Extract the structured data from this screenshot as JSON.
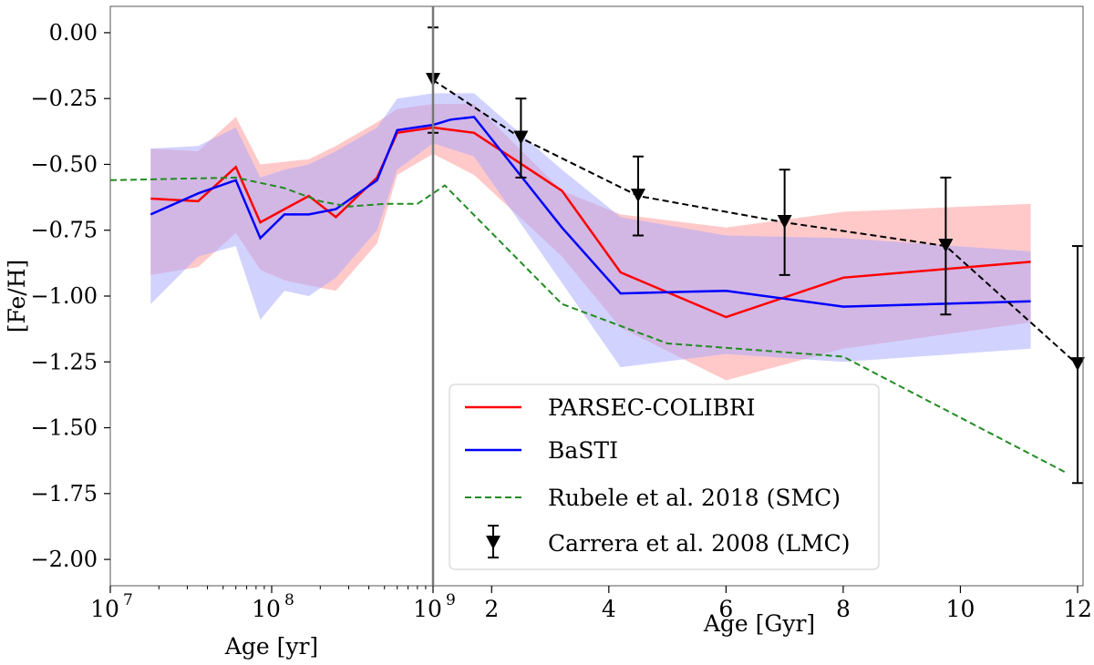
{
  "chart_data": {
    "type": "line",
    "ylabel": "[Fe/H]",
    "ylim": [
      -2.1,
      0.1
    ],
    "y_ticks": [
      {
        "value": 0.0,
        "label": "0.00"
      },
      {
        "value": -0.25,
        "label": "−0.25"
      },
      {
        "value": -0.5,
        "label": "−0.50"
      },
      {
        "value": -0.75,
        "label": "−0.75"
      },
      {
        "value": -1.0,
        "label": "−1.00"
      },
      {
        "value": -1.25,
        "label": "−1.25"
      },
      {
        "value": -1.5,
        "label": "−1.50"
      },
      {
        "value": -1.75,
        "label": "−1.75"
      },
      {
        "value": -2.0,
        "label": "−2.00"
      }
    ],
    "left_panel": {
      "xlabel": "Age [yr]",
      "xscale": "log",
      "xlim_log10": [
        7,
        9
      ],
      "x_ticks": [
        {
          "log10": 7,
          "base": "10",
          "exp": "7"
        },
        {
          "log10": 8,
          "base": "10",
          "exp": "8"
        },
        {
          "log10": 9,
          "base": "10",
          "exp": "9"
        }
      ]
    },
    "right_panel": {
      "xlabel": "Age [Gyr]",
      "xscale": "linear",
      "xlim": [
        1,
        12
      ],
      "x_ticks": [
        {
          "value": 2,
          "label": "2"
        },
        {
          "value": 4,
          "label": "4"
        },
        {
          "value": 6,
          "label": "6"
        },
        {
          "value": 8,
          "label": "8"
        },
        {
          "value": 10,
          "label": "10"
        },
        {
          "value": 12,
          "label": "12"
        }
      ]
    },
    "bands": [
      {
        "name": "PARSEC-COLIBRI range",
        "color": "#ff9c9c",
        "x_gyr": [
          0.0178,
          0.035,
          0.06,
          0.085,
          0.12,
          0.17,
          0.25,
          0.45,
          0.6,
          1.0,
          1.7,
          3.2,
          4.2,
          6.0,
          8.0,
          11.2
        ],
        "upper": [
          -0.44,
          -0.45,
          -0.32,
          -0.5,
          -0.49,
          -0.48,
          -0.43,
          -0.34,
          -0.29,
          -0.27,
          -0.27,
          -0.6,
          -0.69,
          -0.74,
          -0.68,
          -0.65
        ],
        "lower": [
          -0.92,
          -0.89,
          -0.76,
          -0.9,
          -0.94,
          -0.96,
          -0.98,
          -0.8,
          -0.54,
          -0.46,
          -0.54,
          -0.85,
          -1.12,
          -1.32,
          -1.2,
          -1.1
        ]
      },
      {
        "name": "BaSTI range",
        "color": "#a5a5ff",
        "x_gyr": [
          0.0178,
          0.035,
          0.06,
          0.085,
          0.12,
          0.17,
          0.25,
          0.45,
          0.6,
          1.0,
          1.7,
          3.2,
          4.2,
          6.0,
          8.0,
          11.2
        ],
        "upper": [
          -0.44,
          -0.43,
          -0.36,
          -0.55,
          -0.52,
          -0.5,
          -0.45,
          -0.36,
          -0.25,
          -0.23,
          -0.23,
          -0.52,
          -0.7,
          -0.77,
          -0.78,
          -0.83
        ],
        "lower": [
          -1.03,
          -0.85,
          -0.81,
          -1.09,
          -0.98,
          -1.0,
          -0.93,
          -0.75,
          -0.52,
          -0.42,
          -0.47,
          -0.95,
          -1.27,
          -1.22,
          -1.25,
          -1.2
        ]
      }
    ],
    "series": [
      {
        "name": "PARSEC-COLIBRI",
        "color": "#ff0000",
        "style": "solid",
        "x_gyr": [
          0.0178,
          0.035,
          0.06,
          0.085,
          0.12,
          0.17,
          0.25,
          0.45,
          0.6,
          1.0,
          1.7,
          3.2,
          4.2,
          6.0,
          8.0,
          11.2
        ],
        "y": [
          -0.63,
          -0.64,
          -0.51,
          -0.72,
          -0.67,
          -0.62,
          -0.7,
          -0.55,
          -0.38,
          -0.36,
          -0.38,
          -0.6,
          -0.91,
          -1.08,
          -0.93,
          -0.87
        ]
      },
      {
        "name": "BaSTI",
        "color": "#0000ff",
        "style": "solid",
        "x_gyr": [
          0.0178,
          0.035,
          0.06,
          0.085,
          0.12,
          0.17,
          0.25,
          0.45,
          0.6,
          1.0,
          1.3,
          1.7,
          3.2,
          4.2,
          6.0,
          8.0,
          11.2
        ],
        "y": [
          -0.69,
          -0.61,
          -0.56,
          -0.78,
          -0.69,
          -0.69,
          -0.67,
          -0.56,
          -0.37,
          -0.35,
          -0.33,
          -0.32,
          -0.74,
          -0.99,
          -0.98,
          -1.04,
          -1.02
        ]
      },
      {
        "name": "Rubele et al. 2018 (SMC)",
        "color": "#228b22",
        "style": "dashed",
        "x_gyr": [
          0.01,
          0.06,
          0.12,
          0.2,
          0.3,
          0.5,
          0.8,
          1.2,
          3.2,
          5.0,
          8.0,
          11.8
        ],
        "y": [
          -0.56,
          -0.55,
          -0.59,
          -0.64,
          -0.66,
          -0.65,
          -0.65,
          -0.58,
          -1.03,
          -1.18,
          -1.23,
          -1.67
        ]
      },
      {
        "name": "Carrera et al. 2008 (LMC)",
        "color": "#000000",
        "style": "dashed",
        "marker": "triangle-down",
        "x_gyr": [
          1.0,
          2.5,
          4.5,
          7.0,
          9.75,
          12.0
        ],
        "y": [
          -0.18,
          -0.4,
          -0.62,
          -0.72,
          -0.81,
          -1.26
        ],
        "err": [
          0.2,
          0.15,
          0.15,
          0.2,
          0.26,
          0.45
        ]
      }
    ],
    "legend": {
      "location": "lower-right",
      "entries": [
        {
          "label": "PARSEC-COLIBRI"
        },
        {
          "label": "BaSTI"
        },
        {
          "label": "Rubele et al. 2018 (SMC)"
        },
        {
          "label": "Carrera et al. 2008 (LMC)"
        }
      ]
    }
  }
}
